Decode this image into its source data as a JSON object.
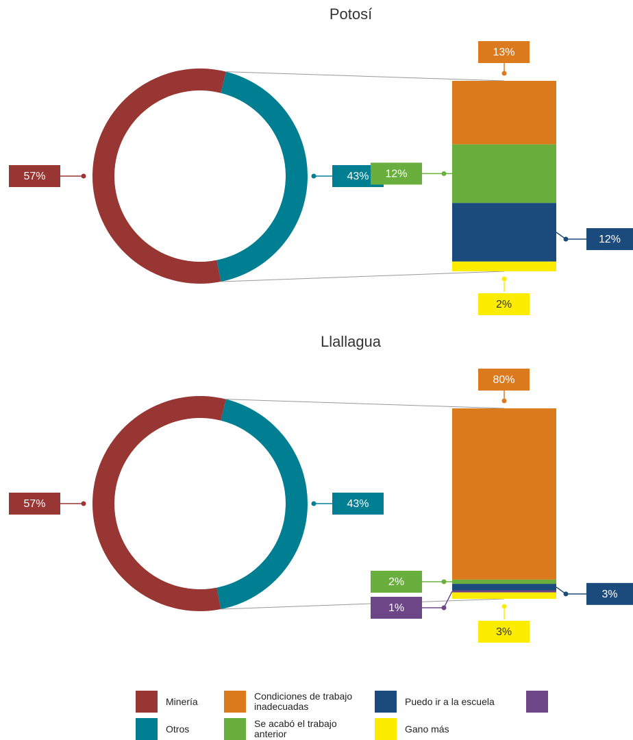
{
  "chart_data": [
    {
      "type": "bar-of-pie",
      "title": "Potosí",
      "pie": {
        "categories": [
          "Minería",
          "Otros"
        ],
        "values": [
          57,
          43
        ],
        "value_labels": [
          "57%",
          "43%"
        ],
        "colors": [
          "#973632",
          "#007f93"
        ]
      },
      "bar": {
        "categories": [
          "Condiciones de trabajo inadecuadas",
          "Se acabó el trabajo anterior",
          "Puedo ir a la escuela",
          "Gano más"
        ],
        "values": [
          13,
          12,
          12,
          2
        ],
        "value_labels": [
          "13%",
          "12%",
          "12%",
          "2%"
        ],
        "colors": [
          "#dc7a1e",
          "#6aaf3d",
          "#1b4a7c",
          "#fcec00"
        ]
      }
    },
    {
      "type": "bar-of-pie",
      "title": "Llallagua",
      "pie": {
        "categories": [
          "Minería",
          "Otros"
        ],
        "values": [
          57,
          43
        ],
        "value_labels": [
          "57%",
          "43%"
        ],
        "colors": [
          "#973632",
          "#007f93"
        ]
      },
      "bar": {
        "categories": [
          "Condiciones de trabajo inadecuadas",
          "Se acabó el trabajo anterior",
          "Puedo ir a la escuela",
          null,
          "Gano más"
        ],
        "values": [
          80,
          2,
          3,
          1,
          3
        ],
        "value_labels": [
          "80%",
          "2%",
          "3%",
          "1%",
          "3%"
        ],
        "colors": [
          "#dc7a1e",
          "#6aaf3d",
          "#1b4a7c",
          "#6d4688",
          "#fcec00"
        ]
      }
    }
  ],
  "legend": [
    {
      "name": "Minería",
      "color": "#973632"
    },
    {
      "name": "Condiciones de trabajo inadecuadas",
      "color": "#dc7a1e"
    },
    {
      "name": "Puedo ir a la escuela",
      "color": "#1b4a7c"
    },
    {
      "name": null,
      "color": "#6d4688"
    },
    {
      "name": "Otros",
      "color": "#007f93"
    },
    {
      "name": "Se acabó el trabajo anterior",
      "color": "#6aaf3d"
    },
    {
      "name": "Gano más",
      "color": "#fcec00"
    }
  ]
}
